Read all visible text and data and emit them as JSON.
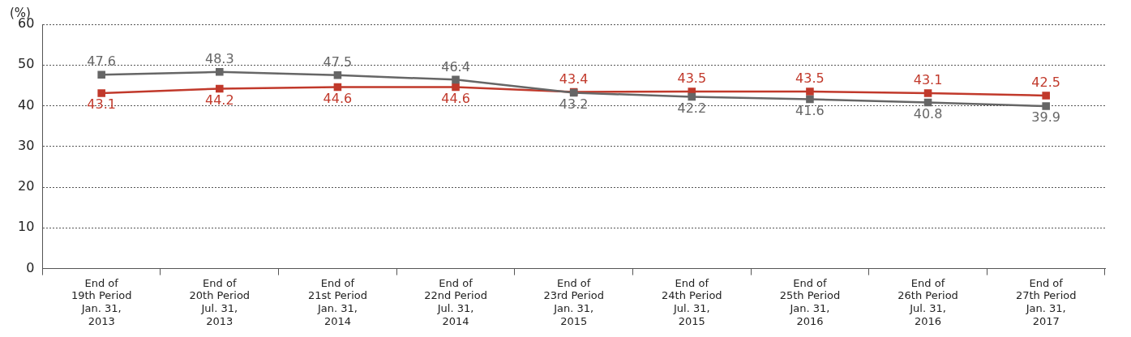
{
  "chart_data": {
    "type": "line",
    "ylabel": "(%)",
    "categories": [
      "End of\n19th Period\nJan. 31,\n2013",
      "End of\n20th Period\nJul. 31,\n2013",
      "End of\n21st Period\nJan. 31,\n2014",
      "End of\n22nd Period\nJul. 31,\n2014",
      "End of\n23rd Period\nJan. 31,\n2015",
      "End of\n24th Period\nJul. 31,\n2015",
      "End of\n25th Period\nJan. 31,\n2016",
      "End of\n26th Period\nJul. 31,\n2016",
      "End of\n27th Period\nJan. 31,\n2017"
    ],
    "series": [
      {
        "color": "#666666",
        "values": [
          47.6,
          48.3,
          47.5,
          46.4,
          43.2,
          42.2,
          41.6,
          40.8,
          39.9
        ]
      },
      {
        "color": "#c1392b",
        "values": [
          43.1,
          44.2,
          44.6,
          44.6,
          43.4,
          43.5,
          43.5,
          43.1,
          42.5
        ]
      }
    ],
    "ylim": [
      0,
      60
    ],
    "yticks": [
      0,
      10,
      20,
      30,
      40,
      50,
      60
    ],
    "grid": "y",
    "marker": "square",
    "data_labels": true,
    "legend": false
  }
}
